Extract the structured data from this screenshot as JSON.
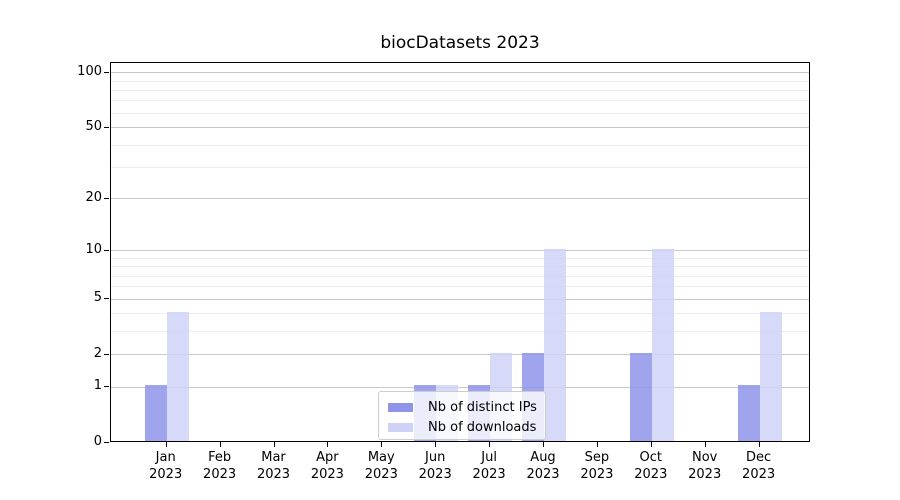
{
  "figure": {
    "background": "#ffffff"
  },
  "chart_data": {
    "type": "bar",
    "title": "biocDatasets 2023",
    "categories": [
      "Jan 2023",
      "Feb 2023",
      "Mar 2023",
      "Apr 2023",
      "May 2023",
      "Jun 2023",
      "Jul 2023",
      "Aug 2023",
      "Sep 2023",
      "Oct 2023",
      "Nov 2023",
      "Dec 2023"
    ],
    "series": [
      {
        "name": "Nb of distinct IPs",
        "color": "#8f94e9",
        "values": [
          1,
          0,
          0,
          0,
          0,
          1,
          1,
          2,
          0,
          2,
          0,
          1
        ]
      },
      {
        "name": "Nb of downloads",
        "color": "#cfd2f7",
        "values": [
          4,
          0,
          0,
          0,
          0,
          1,
          2,
          10,
          0,
          10,
          0,
          4
        ]
      }
    ],
    "xlabel": "",
    "ylabel": "",
    "yscale": "log1p",
    "ylim": [
      0,
      113
    ],
    "yticks": [
      0,
      1,
      2,
      5,
      10,
      20,
      50,
      100
    ],
    "yticks_minor": [
      3,
      4,
      6,
      7,
      8,
      9,
      30,
      40,
      60,
      70,
      80,
      90
    ],
    "grid": "horizontal, major and minor, behind-visible-through-translucent-bars",
    "legend_position": "inside bottom-center",
    "colors": {
      "axis": "#000000",
      "grid_major": "#c9c9c9",
      "grid_minor": "#ececec",
      "text": "#000000",
      "legend_border": "#cccccc"
    }
  }
}
